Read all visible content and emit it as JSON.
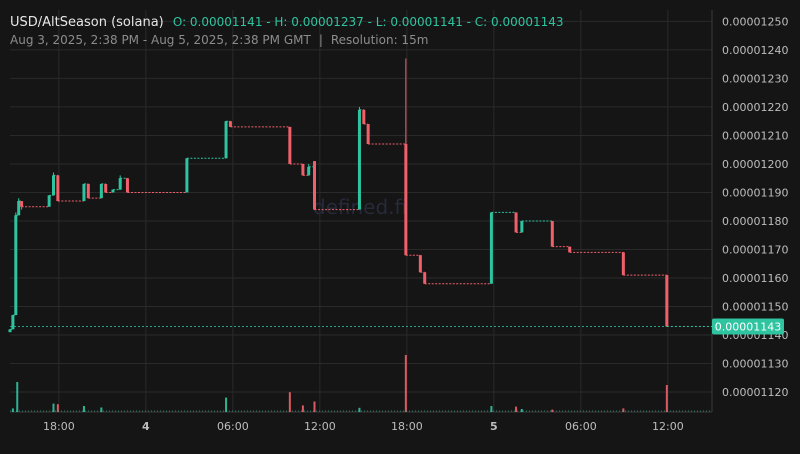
{
  "header": {
    "symbol": "USD/AltSeason (solana)",
    "ohlc": "O: 0.00001141 - H: 0.00001237 - L: 0.00001141 - C: 0.00001143",
    "range": "Aug 3, 2025, 2:38 PM - Aug 5, 2025, 2:38 PM GMT",
    "separator": "|",
    "resolution": "Resolution: 15m"
  },
  "watermark": "defined.fi",
  "colors": {
    "up": "#2ec4a0",
    "down": "#f0606a",
    "background": "#151515",
    "grid": "#2a2a2a",
    "price_badge": "#2ec4a0"
  },
  "chart_data": {
    "type": "candlestick",
    "title": "USD/AltSeason (solana)",
    "x_ticks": [
      "18:00",
      "4",
      "06:00",
      "12:00",
      "18:00",
      "5",
      "06:00",
      "12:00"
    ],
    "x_tick_hours": [
      3.37,
      9.37,
      15.37,
      21.37,
      27.37,
      33.37,
      39.37,
      45.37
    ],
    "y_ticks": [
      "0.00001250",
      "0.00001240",
      "0.00001230",
      "0.00001220",
      "0.00001210",
      "0.00001200",
      "0.00001190",
      "0.00001180",
      "0.00001170",
      "0.00001160",
      "0.00001150",
      "0.00001140",
      "0.00001130",
      "0.00001120"
    ],
    "ylim": [
      1.113e-05,
      1.254e-05
    ],
    "last_price": "0.00001143",
    "candles": [
      {
        "t": 0.0,
        "o": 1.141e-05,
        "h": 1.141e-05,
        "l": 1.141e-05,
        "c": 1.142e-05
      },
      {
        "t": 0.2,
        "o": 1.142e-05,
        "h": 1.147e-05,
        "l": 1.142e-05,
        "c": 1.147e-05
      },
      {
        "t": 0.4,
        "o": 1.147e-05,
        "h": 1.183e-05,
        "l": 1.147e-05,
        "c": 1.182e-05
      },
      {
        "t": 0.6,
        "o": 1.182e-05,
        "h": 1.188e-05,
        "l": 1.182e-05,
        "c": 1.187e-05
      },
      {
        "t": 0.8,
        "o": 1.187e-05,
        "h": 1.187e-05,
        "l": 1.184e-05,
        "c": 1.185e-05
      },
      {
        "t": 2.7,
        "o": 1.185e-05,
        "h": 1.189e-05,
        "l": 1.185e-05,
        "c": 1.189e-05
      },
      {
        "t": 3.0,
        "o": 1.189e-05,
        "h": 1.197e-05,
        "l": 1.189e-05,
        "c": 1.196e-05
      },
      {
        "t": 3.3,
        "o": 1.196e-05,
        "h": 1.196e-05,
        "l": 1.187e-05,
        "c": 1.187e-05
      },
      {
        "t": 5.1,
        "o": 1.187e-05,
        "h": 1.193e-05,
        "l": 1.187e-05,
        "c": 1.193e-05
      },
      {
        "t": 5.4,
        "o": 1.193e-05,
        "h": 1.193e-05,
        "l": 1.188e-05,
        "c": 1.188e-05
      },
      {
        "t": 6.3,
        "o": 1.188e-05,
        "h": 1.193e-05,
        "l": 1.188e-05,
        "c": 1.193e-05
      },
      {
        "t": 6.6,
        "o": 1.193e-05,
        "h": 1.193e-05,
        "l": 1.19e-05,
        "c": 1.19e-05
      },
      {
        "t": 7.1,
        "o": 1.19e-05,
        "h": 1.191e-05,
        "l": 1.19e-05,
        "c": 1.191e-05
      },
      {
        "t": 7.6,
        "o": 1.191e-05,
        "h": 1.196e-05,
        "l": 1.191e-05,
        "c": 1.195e-05
      },
      {
        "t": 8.1,
        "o": 1.195e-05,
        "h": 1.195e-05,
        "l": 1.19e-05,
        "c": 1.19e-05
      },
      {
        "t": 12.2,
        "o": 1.19e-05,
        "h": 1.202e-05,
        "l": 1.19e-05,
        "c": 1.202e-05
      },
      {
        "t": 14.9,
        "o": 1.202e-05,
        "h": 1.215e-05,
        "l": 1.202e-05,
        "c": 1.215e-05
      },
      {
        "t": 15.2,
        "o": 1.215e-05,
        "h": 1.215e-05,
        "l": 1.213e-05,
        "c": 1.213e-05
      },
      {
        "t": 19.3,
        "o": 1.213e-05,
        "h": 1.213e-05,
        "l": 1.2e-05,
        "c": 1.2e-05
      },
      {
        "t": 20.2,
        "o": 1.2e-05,
        "h": 1.2e-05,
        "l": 1.196e-05,
        "c": 1.196e-05
      },
      {
        "t": 20.6,
        "o": 1.196e-05,
        "h": 1.2e-05,
        "l": 1.196e-05,
        "c": 1.199e-05
      },
      {
        "t": 21.0,
        "o": 1.201e-05,
        "h": 1.201e-05,
        "l": 1.184e-05,
        "c": 1.184e-05
      },
      {
        "t": 24.1,
        "o": 1.184e-05,
        "h": 1.22e-05,
        "l": 1.184e-05,
        "c": 1.219e-05
      },
      {
        "t": 24.4,
        "o": 1.219e-05,
        "h": 1.219e-05,
        "l": 1.214e-05,
        "c": 1.214e-05
      },
      {
        "t": 24.7,
        "o": 1.214e-05,
        "h": 1.214e-05,
        "l": 1.207e-05,
        "c": 1.207e-05
      },
      {
        "t": 27.3,
        "o": 1.207e-05,
        "h": 1.237e-05,
        "l": 1.168e-05,
        "c": 1.168e-05
      },
      {
        "t": 28.3,
        "o": 1.168e-05,
        "h": 1.168e-05,
        "l": 1.162e-05,
        "c": 1.162e-05
      },
      {
        "t": 28.6,
        "o": 1.162e-05,
        "h": 1.162e-05,
        "l": 1.158e-05,
        "c": 1.158e-05
      },
      {
        "t": 33.2,
        "o": 1.158e-05,
        "h": 1.183e-05,
        "l": 1.158e-05,
        "c": 1.183e-05
      },
      {
        "t": 34.9,
        "o": 1.183e-05,
        "h": 1.183e-05,
        "l": 1.176e-05,
        "c": 1.176e-05
      },
      {
        "t": 35.3,
        "o": 1.176e-05,
        "h": 1.18e-05,
        "l": 1.176e-05,
        "c": 1.18e-05
      },
      {
        "t": 37.4,
        "o": 1.18e-05,
        "h": 1.18e-05,
        "l": 1.171e-05,
        "c": 1.171e-05
      },
      {
        "t": 38.6,
        "o": 1.171e-05,
        "h": 1.171e-05,
        "l": 1.169e-05,
        "c": 1.169e-05
      },
      {
        "t": 42.3,
        "o": 1.169e-05,
        "h": 1.169e-05,
        "l": 1.161e-05,
        "c": 1.161e-05
      },
      {
        "t": 45.3,
        "o": 1.161e-05,
        "h": 1.161e-05,
        "l": 1.143e-05,
        "c": 1.143e-05
      }
    ],
    "volume": [
      {
        "t": 0.2,
        "v": 0.12
      },
      {
        "t": 0.5,
        "v": 1.0
      },
      {
        "t": 3.0,
        "v": 0.28
      },
      {
        "t": 3.3,
        "v": 0.26
      },
      {
        "t": 5.1,
        "v": 0.2
      },
      {
        "t": 6.3,
        "v": 0.15
      },
      {
        "t": 14.9,
        "v": 0.48
      },
      {
        "t": 19.3,
        "v": 0.66
      },
      {
        "t": 20.2,
        "v": 0.22
      },
      {
        "t": 21.0,
        "v": 0.35
      },
      {
        "t": 24.1,
        "v": 0.14
      },
      {
        "t": 27.3,
        "v": 1.9
      },
      {
        "t": 33.2,
        "v": 0.2
      },
      {
        "t": 34.9,
        "v": 0.18
      },
      {
        "t": 35.3,
        "v": 0.1
      },
      {
        "t": 37.4,
        "v": 0.08
      },
      {
        "t": 42.3,
        "v": 0.12
      },
      {
        "t": 45.3,
        "v": 0.9
      }
    ],
    "grid": true
  }
}
